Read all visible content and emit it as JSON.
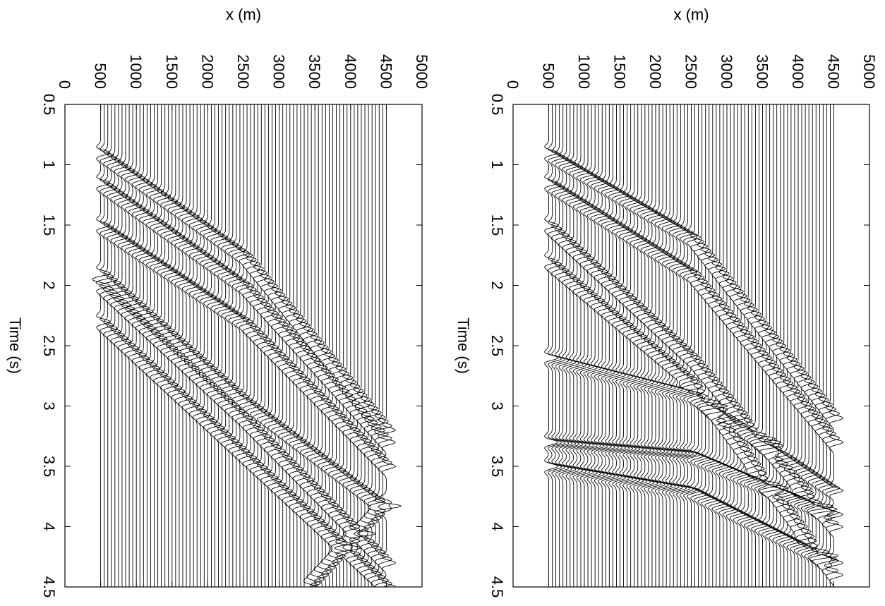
{
  "chart_data": [
    {
      "type": "wiggle",
      "xlabel": "x (m)",
      "ylabel": "Time (s)",
      "xlim": [
        0,
        5000
      ],
      "xticks": [
        0,
        500,
        1000,
        1500,
        2000,
        2500,
        3000,
        3500,
        4000,
        4500,
        5000
      ],
      "ylim": [
        0.5,
        4.5
      ],
      "yticks": [
        0.5,
        1,
        1.5,
        2,
        2.5,
        3,
        3.5,
        4,
        4.5
      ],
      "color": "#000000",
      "trace_x": [
        500,
        550,
        600,
        650,
        700,
        750,
        800,
        850,
        900,
        950,
        1000,
        1050,
        1100,
        1150,
        1200,
        1250,
        1300,
        1350,
        1400,
        1450,
        1500,
        1550,
        1600,
        1650,
        1700,
        1750,
        1800,
        1850,
        1900,
        1950,
        2000,
        2050,
        2100,
        2150,
        2200,
        2250,
        2300,
        2350,
        2400,
        2450,
        2500,
        2550,
        2600,
        2650,
        2700,
        2750,
        2800,
        2850,
        2900,
        2950,
        3000,
        3050,
        3100,
        3150,
        3200,
        3250,
        3300,
        3350,
        3400,
        3450,
        3500,
        3550,
        3600,
        3650,
        3700,
        3750,
        3800,
        3850,
        3900,
        3950,
        4000,
        4050,
        4100,
        4150,
        4200,
        4250,
        4300,
        4350,
        4400,
        4450,
        4500
      ],
      "events": [
        {
          "x": [
            500,
            2500,
            4500
          ],
          "values": [
            0.9,
            1.75,
            3.2
          ]
        },
        {
          "x": [
            500,
            2500,
            4500
          ],
          "values": [
            1.15,
            2.0,
            3.3
          ]
        },
        {
          "x": [
            500,
            2500,
            4500
          ],
          "values": [
            1.5,
            2.3,
            3.5
          ]
        },
        {
          "x": [
            500,
            2500,
            4500
          ],
          "values": [
            1.9,
            2.95,
            3.85
          ]
        },
        {
          "x": [
            500,
            2500,
            4500
          ],
          "values": [
            2.0,
            3.1,
            4.3
          ]
        },
        {
          "x": [
            500,
            2500,
            4500
          ],
          "values": [
            2.3,
            3.4,
            4.5
          ]
        },
        {
          "x": [
            3400,
            4500
          ],
          "values": [
            4.5,
            3.8
          ]
        }
      ]
    },
    {
      "type": "wiggle",
      "xlabel": "x (m)",
      "ylabel": "Time (s)",
      "xlim": [
        0,
        5000
      ],
      "xticks": [
        0,
        500,
        1000,
        1500,
        2000,
        2500,
        3000,
        3500,
        4000,
        4500,
        5000
      ],
      "ylim": [
        0.5,
        4.5
      ],
      "yticks": [
        0.5,
        1,
        1.5,
        2,
        2.5,
        3,
        3.5,
        4,
        4.5
      ],
      "color": "#000000",
      "trace_x": [
        500,
        550,
        600,
        650,
        700,
        750,
        800,
        850,
        900,
        950,
        1000,
        1050,
        1100,
        1150,
        1200,
        1250,
        1300,
        1350,
        1400,
        1450,
        1500,
        1550,
        1600,
        1650,
        1700,
        1750,
        1800,
        1850,
        1900,
        1950,
        2000,
        2050,
        2100,
        2150,
        2200,
        2250,
        2300,
        2350,
        2400,
        2450,
        2500,
        2550,
        2600,
        2650,
        2700,
        2750,
        2800,
        2850,
        2900,
        2950,
        3000,
        3050,
        3100,
        3150,
        3200,
        3250,
        3300,
        3350,
        3400,
        3450,
        3500,
        3550,
        3600,
        3650,
        3700,
        3750,
        3800,
        3850,
        3900,
        3950,
        4000,
        4050,
        4100,
        4150,
        4200,
        4250,
        4300,
        4350,
        4400,
        4450,
        4500
      ],
      "events": [
        {
          "x": [
            500,
            2500,
            4500
          ],
          "values": [
            0.9,
            1.6,
            3.1
          ]
        },
        {
          "x": [
            500,
            2500,
            4500
          ],
          "values": [
            1.15,
            1.9,
            3.3
          ]
        },
        {
          "x": [
            500,
            2500,
            4500
          ],
          "values": [
            1.5,
            2.6,
            4.0
          ]
        },
        {
          "x": [
            500,
            2500,
            4500
          ],
          "values": [
            1.8,
            2.8,
            4.4
          ]
        },
        {
          "x": [
            500,
            2500,
            4500
          ],
          "values": [
            2.6,
            2.9,
            3.7
          ]
        },
        {
          "x": [
            500,
            2500,
            4500
          ],
          "values": [
            3.3,
            3.4,
            3.9
          ]
        },
        {
          "x": [
            500,
            2500,
            4500
          ],
          "values": [
            3.5,
            3.7,
            4.3
          ]
        }
      ]
    }
  ]
}
